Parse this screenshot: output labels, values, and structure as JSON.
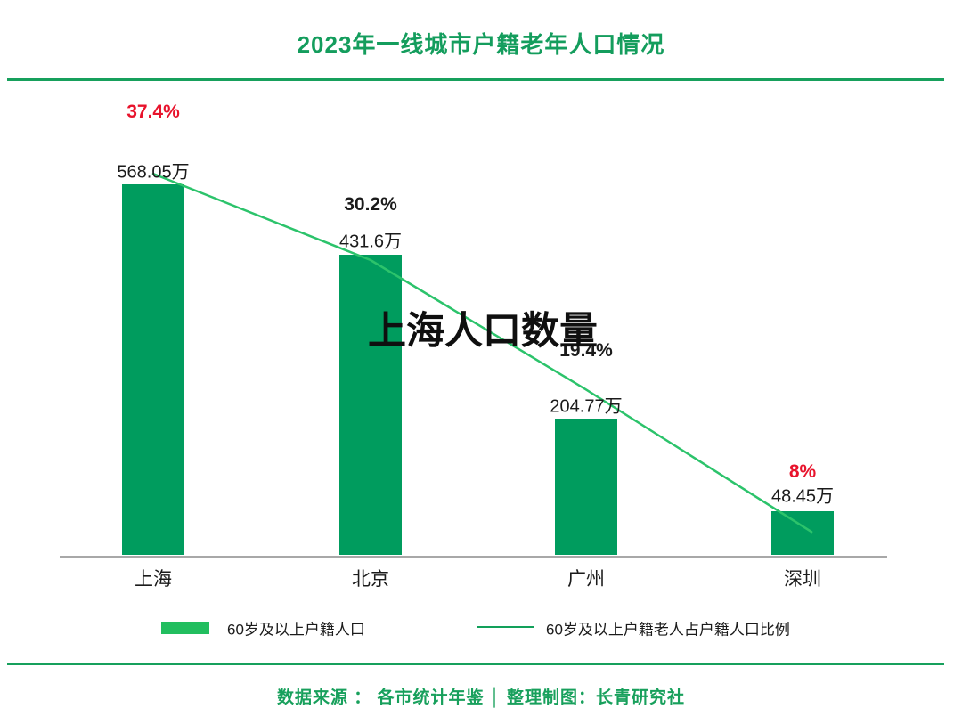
{
  "header": {
    "title": "2023年一线城市户籍老年人口情况"
  },
  "overlay": {
    "text": "上海人口数量"
  },
  "chart_data": {
    "type": "bar",
    "title": "2023年一线城市户籍老年人口情况",
    "categories": [
      "上海",
      "北京",
      "广州",
      "深圳"
    ],
    "series": [
      {
        "name": "60岁及以上户籍人口",
        "type": "bar",
        "unit": "万",
        "values": [
          568.05,
          431.6,
          204.77,
          48.45
        ],
        "labels": [
          "568.05万",
          "431.6万",
          "204.77万",
          "48.45万"
        ]
      },
      {
        "name": "60岁及以上户籍老人占户籍人口比例",
        "type": "line",
        "unit": "%",
        "values": [
          37.4,
          30.2,
          19.4,
          8
        ],
        "labels": [
          "37.4%",
          "30.2%",
          "19.4%",
          "8%"
        ],
        "label_colors": [
          "red",
          "black",
          "black",
          "red"
        ]
      }
    ],
    "legend_position": "bottom",
    "grid": false,
    "xlabel": "",
    "ylabel": ""
  },
  "legend": {
    "bar_label": "60岁及以上户籍人口",
    "line_label": "60岁及以上户籍老人占户籍人口比例"
  },
  "footer": {
    "text": "数据来源 ： 各市统计年鉴  │  整理制图：长青研究社"
  },
  "colors": {
    "brand_green": "#149d5d",
    "bar_green": "#009c5e",
    "legend_swatch_green": "#22be5f",
    "line_green": "#2cc36b",
    "legend_line_green": "#12a05a",
    "accent_red": "#e8132c",
    "text_black": "#1b1b1b",
    "axis_gray": "#a8a8a8"
  }
}
